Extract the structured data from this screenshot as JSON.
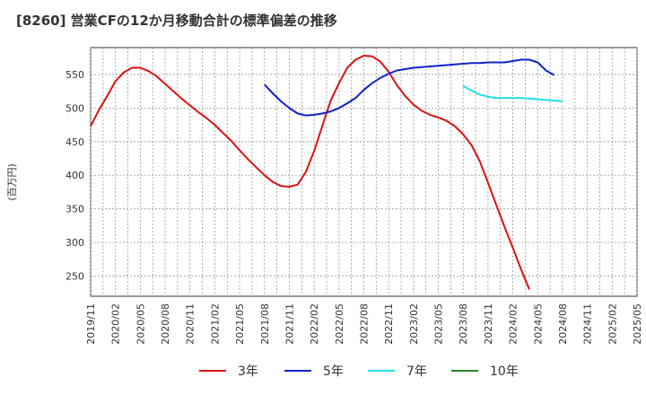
{
  "title": "[8260]  営業CFの12か月移動合計の標準偏差の推移",
  "chart_data": {
    "type": "line",
    "ylabel": "(百万円)",
    "ylim": [
      220,
      590
    ],
    "yticks": [
      250,
      300,
      350,
      400,
      450,
      500,
      550
    ],
    "x_start": "2019/11",
    "x_end": "2025/05",
    "xticks": [
      "2019/11",
      "2020/02",
      "2020/05",
      "2020/08",
      "2020/11",
      "2021/02",
      "2021/05",
      "2021/08",
      "2021/11",
      "2022/02",
      "2022/05",
      "2022/08",
      "2022/11",
      "2023/02",
      "2023/05",
      "2023/08",
      "2023/11",
      "2024/02",
      "2024/05",
      "2024/08",
      "2024/11",
      "2025/02",
      "2025/05"
    ],
    "grid": true,
    "legend_position": "bottom",
    "series": [
      {
        "name": "3年",
        "color": "#dd1111",
        "start": "2019/11",
        "values": [
          473,
          497,
          518,
          540,
          553,
          560,
          560,
          555,
          547,
          536,
          525,
          514,
          504,
          494,
          485,
          475,
          463,
          451,
          437,
          424,
          412,
          400,
          390,
          384,
          383,
          386,
          405,
          436,
          474,
          511,
          537,
          560,
          572,
          578,
          577,
          569,
          554,
          534,
          518,
          505,
          496,
          490,
          486,
          481,
          473,
          461,
          445,
          421,
          389,
          356,
          323,
          292,
          260,
          230
        ]
      },
      {
        "name": "5年",
        "color": "#1122cc",
        "start": "2021/08",
        "values": [
          535,
          522,
          510,
          500,
          492,
          489,
          490,
          492,
          495,
          500,
          507,
          515,
          527,
          537,
          545,
          551,
          556,
          558,
          560,
          561,
          562,
          563,
          564,
          565,
          566,
          567,
          567,
          568,
          568,
          568,
          570,
          572,
          572,
          568,
          556,
          549
        ]
      },
      {
        "name": "7年",
        "color": "#22e0e8",
        "start": "2023/08",
        "values": [
          533,
          526,
          520,
          517,
          515,
          515,
          515,
          515,
          514,
          513,
          512,
          511,
          510
        ]
      },
      {
        "name": "10年",
        "color": "#228822",
        "start": "2025/05",
        "values": []
      }
    ]
  }
}
